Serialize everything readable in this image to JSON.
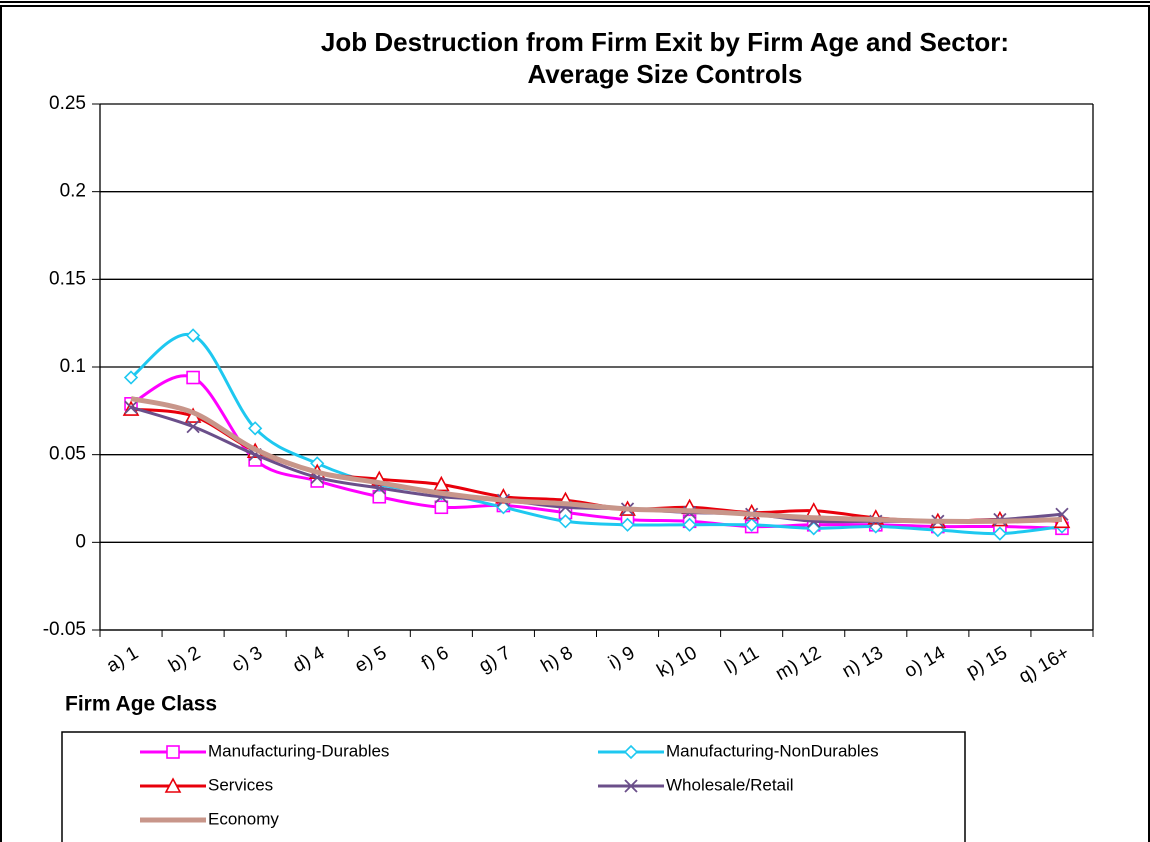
{
  "chart_data": {
    "type": "line",
    "title": [
      "Job Destruction from Firm Exit by Firm Age and Sector:",
      "Average Size Controls"
    ],
    "x_label": "Firm Age Class",
    "categories": [
      "a) 1",
      "b) 2",
      "c) 3",
      "d) 4",
      "e) 5",
      "f) 6",
      "g) 7",
      "h) 8",
      "i) 9",
      "k) 10",
      "l) 11",
      "m) 12",
      "n) 13",
      "o) 14",
      "p) 15",
      "q) 16+"
    ],
    "series": [
      {
        "name": "Manufacturing-Durables",
        "color": "#ff00ff",
        "marker": "square",
        "values": [
          0.079,
          0.094,
          0.047,
          0.035,
          0.026,
          0.02,
          0.021,
          0.017,
          0.013,
          0.012,
          0.009,
          0.01,
          0.01,
          0.009,
          0.009,
          0.008
        ]
      },
      {
        "name": "Manufacturing-NonDurables",
        "color": "#1ec8f0",
        "marker": "diamond",
        "values": [
          0.094,
          0.118,
          0.065,
          0.045,
          0.033,
          0.028,
          0.02,
          0.012,
          0.01,
          0.01,
          0.01,
          0.008,
          0.009,
          0.007,
          0.005,
          0.009
        ]
      },
      {
        "name": "Services",
        "color": "#e8000b",
        "marker": "triangle",
        "values": [
          0.076,
          0.072,
          0.052,
          0.04,
          0.036,
          0.033,
          0.026,
          0.024,
          0.019,
          0.02,
          0.017,
          0.018,
          0.014,
          0.012,
          0.013,
          0.012
        ]
      },
      {
        "name": "Wholesale/Retail",
        "color": "#6b4f8a",
        "marker": "x",
        "values": [
          0.077,
          0.066,
          0.05,
          0.037,
          0.031,
          0.026,
          0.024,
          0.02,
          0.019,
          0.017,
          0.016,
          0.012,
          0.012,
          0.012,
          0.013,
          0.016
        ]
      },
      {
        "name": "Economy",
        "color": "#c8968a",
        "marker": "none",
        "values": [
          0.082,
          0.074,
          0.053,
          0.04,
          0.034,
          0.028,
          0.024,
          0.022,
          0.019,
          0.018,
          0.016,
          0.014,
          0.013,
          0.012,
          0.012,
          0.013
        ]
      }
    ],
    "ylim": [
      -0.05,
      0.25
    ],
    "yticks": [
      -0.05,
      0,
      0.05,
      0.1,
      0.15,
      0.2,
      0.25
    ],
    "grid": true
  }
}
